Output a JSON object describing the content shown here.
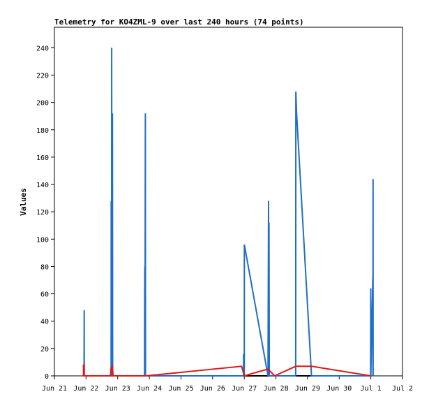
{
  "chart_data": {
    "type": "line",
    "title": "Telemetry for KO4ZML-9 over last 240 hours (74 points)",
    "xlabel": "",
    "ylabel": "Values",
    "ylim": [
      0,
      255
    ],
    "yticks": [
      0,
      20,
      40,
      60,
      80,
      100,
      120,
      140,
      160,
      180,
      200,
      220,
      240
    ],
    "xlim": [
      "2021-06-21",
      "2021-07-02"
    ],
    "xticks": [
      {
        "label": "Jun 21",
        "date": "2021-06-21"
      },
      {
        "label": "Jun 22",
        "date": "2021-06-22"
      },
      {
        "label": "Jun 23",
        "date": "2021-06-23"
      },
      {
        "label": "Jun 24",
        "date": "2021-06-24"
      },
      {
        "label": "Jun 25",
        "date": "2021-06-25"
      },
      {
        "label": "Jun 26",
        "date": "2021-06-26"
      },
      {
        "label": "Jun 27",
        "date": "2021-06-27"
      },
      {
        "label": "Jun 28",
        "date": "2021-06-28"
      },
      {
        "label": "Jun 29",
        "date": "2021-06-29"
      },
      {
        "label": "Jun 30",
        "date": "2021-06-30"
      },
      {
        "label": "Jul 1",
        "date": "2021-07-01"
      },
      {
        "label": "Jul 2",
        "date": "2021-07-02"
      }
    ],
    "grid": false,
    "legend": "none",
    "series": [
      {
        "color": "#000000",
        "x": [
          "2021-06-21 22:00",
          "2021-07-01 00:00"
        ],
        "y": [
          0,
          0
        ]
      },
      {
        "color": "#1f6fc6",
        "x": [
          "2021-06-21 22:30",
          "2021-06-21 22:35",
          "2021-06-21 22:40",
          "2021-06-22 19:00",
          "2021-06-22 19:05",
          "2021-06-22 19:20",
          "2021-06-22 19:25",
          "2021-06-22 19:35",
          "2021-06-22 19:40",
          "2021-06-22 19:55",
          "2021-06-22 20:00",
          "2021-06-22 20:10",
          "2021-06-23 20:20",
          "2021-06-23 20:25",
          "2021-06-23 20:35",
          "2021-06-23 20:40",
          "2021-06-23 21:00",
          "2021-06-23 21:05",
          "2021-06-26 23:25",
          "2021-06-26 23:30",
          "2021-06-26 23:40",
          "2021-06-26 23:45",
          "2021-06-27 00:00",
          "2021-06-27 00:05",
          "2021-06-27 18:00",
          "2021-06-27 18:25",
          "2021-06-27 18:30",
          "2021-06-27 18:45",
          "2021-06-27 19:00",
          "2021-06-28 00:00",
          "2021-06-28 00:05",
          "2021-06-28 15:00",
          "2021-06-28 15:05",
          "2021-06-28 15:40",
          "2021-06-29 03:00",
          "2021-06-29 03:10",
          "2021-06-30 23:50",
          "2021-06-30 23:55",
          "2021-07-01 00:00",
          "2021-07-01 01:30",
          "2021-07-01 01:35",
          "2021-07-01 01:40",
          "2021-07-01 01:45"
        ],
        "y": [
          0,
          48,
          0,
          0,
          128,
          0,
          240,
          0,
          160,
          0,
          192,
          0,
          0,
          40,
          80,
          0,
          192,
          0,
          0,
          16,
          0,
          12,
          0,
          96,
          0,
          128,
          0,
          112,
          0,
          0,
          0,
          0,
          208,
          192,
          0,
          0,
          0,
          64,
          0,
          72,
          0,
          144,
          0
        ]
      },
      {
        "color": "#e01818",
        "x": [
          "2021-06-21 22:00",
          "2021-06-21 22:05",
          "2021-06-21 22:10",
          "2021-06-21 22:30",
          "2021-06-21 22:35",
          "2021-06-21 22:40",
          "2021-06-22 18:30",
          "2021-06-22 19:00",
          "2021-06-22 20:00",
          "2021-06-22 20:30",
          "2021-06-23 21:30",
          "2021-06-26 22:00",
          "2021-06-27 00:00",
          "2021-06-27 18:00",
          "2021-06-27 23:00",
          "2021-06-28 15:00",
          "2021-06-29 03:00",
          "2021-07-01 00:00"
        ],
        "y": [
          0,
          8,
          0,
          9,
          0,
          0,
          0,
          6,
          7,
          0,
          0,
          7,
          0,
          5,
          0,
          7,
          7,
          0
        ]
      }
    ]
  }
}
